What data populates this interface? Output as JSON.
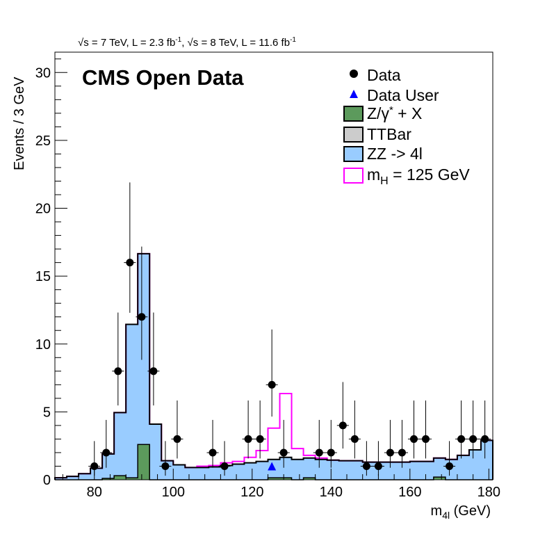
{
  "chart_data": {
    "type": "histogram",
    "title": "CMS Open Data",
    "top_label": {
      "sqrt_s_1": "s",
      "energy_1": " = 7 TeV, L = 2.3 fb",
      "exp_1": "-1",
      "sep": ", ",
      "sqrt_s_2": "s",
      "energy_2": " = 8 TeV, L = 11.6 fb",
      "exp_2": "-1"
    },
    "xlabel": {
      "main": "m",
      "sub": "4l",
      "unit": " (GeV)"
    },
    "ylabel": "Events / 3 GeV",
    "xlim": [
      70,
      181
    ],
    "ylim": [
      0,
      31.5
    ],
    "xticks": [
      80,
      100,
      120,
      140,
      160,
      180
    ],
    "yticks": [
      0,
      5,
      10,
      15,
      20,
      25,
      30
    ],
    "bin_edges": [
      70,
      73,
      76,
      79,
      82,
      85,
      88,
      91,
      94,
      97,
      100,
      103,
      106,
      109,
      112,
      115,
      118,
      121,
      124,
      127,
      130,
      133,
      136,
      139,
      142,
      145,
      148,
      151,
      154,
      157,
      160,
      163,
      166,
      169,
      172,
      175,
      178,
      181
    ],
    "series": [
      {
        "name": "Z/γ* + X",
        "color": "#5c9a5c",
        "values": [
          0,
          0,
          0,
          0,
          0.1,
          0.3,
          0.15,
          2.6,
          0,
          0,
          0,
          0,
          0,
          0,
          0,
          0,
          0,
          0,
          0.15,
          0.15,
          0,
          0.15,
          0,
          0,
          0,
          0,
          0,
          0,
          0,
          0,
          0,
          0,
          0.2,
          0,
          0,
          0,
          0
        ]
      },
      {
        "name": "TTBar",
        "color": "#cccccc",
        "values": [
          0,
          0,
          0,
          0,
          0,
          0,
          0,
          0,
          0,
          0,
          0,
          0,
          0,
          0,
          0,
          0,
          0,
          0,
          0,
          0,
          0,
          0,
          0,
          0,
          0,
          0,
          0,
          0,
          0,
          0,
          0,
          0,
          0,
          0,
          0,
          0,
          0
        ]
      },
      {
        "name": "ZZ -> 4l",
        "color": "#99ccff",
        "values": [
          0.15,
          0.25,
          0.45,
          0.85,
          1.8,
          4.65,
          11.3,
          14.05,
          4.1,
          1.4,
          1.1,
          0.9,
          0.9,
          0.95,
          1.05,
          1.15,
          1.25,
          1.35,
          1.35,
          1.5,
          1.5,
          1.45,
          1.5,
          1.45,
          1.4,
          1.4,
          1.3,
          1.3,
          1.3,
          1.3,
          1.35,
          1.35,
          1.4,
          1.5,
          1.8,
          2.2,
          2.9
        ]
      },
      {
        "name": "m_H = 125 GeV",
        "color": "#ff00ff",
        "values": [
          0,
          0,
          0,
          0,
          0,
          0,
          0,
          0,
          0,
          0,
          0,
          0,
          0.1,
          0.1,
          0.2,
          0.2,
          0.4,
          0.8,
          2.3,
          4.7,
          0.8,
          0.2,
          0.1,
          0,
          0,
          0,
          0,
          0,
          0,
          0,
          0,
          0,
          0,
          0,
          0,
          0,
          0
        ]
      }
    ],
    "data_points": {
      "name": "Data",
      "marker": "circle",
      "color": "#000000",
      "x": [
        80,
        83,
        86,
        89,
        92,
        95,
        98,
        101,
        110,
        113,
        119,
        122,
        125,
        128,
        137,
        140,
        143,
        146,
        149,
        152,
        155,
        158,
        161,
        164,
        170,
        173,
        176,
        179
      ],
      "y": [
        1,
        2,
        8,
        16,
        12,
        8,
        1,
        3,
        2,
        1,
        3,
        3,
        7,
        2,
        2,
        2,
        4,
        3,
        1,
        1,
        2,
        2,
        3,
        3,
        1,
        3,
        3,
        3
      ],
      "x_err": 1.5
    },
    "data_user": {
      "name": "Data User",
      "marker": "triangle",
      "color": "#0000ff",
      "x": [
        125
      ],
      "y": [
        1
      ]
    },
    "legend": [
      {
        "label": "Data",
        "style": "circle",
        "color": "#000000"
      },
      {
        "label": "Data User",
        "style": "triangle",
        "color": "#0000ff"
      },
      {
        "label_main": "Z/γ",
        "label_sup": "*",
        "label_rest": " + X",
        "style": "fill",
        "color": "#5c9a5c"
      },
      {
        "label": "TTBar",
        "style": "fill",
        "color": "#cccccc"
      },
      {
        "label": "ZZ -> 4l",
        "style": "fill",
        "color": "#99ccff"
      },
      {
        "label_main": "m",
        "label_sub": "H",
        "label_rest": " = 125 GeV",
        "style": "outline",
        "color": "#ff00ff"
      }
    ],
    "legend_position": "top-right"
  }
}
